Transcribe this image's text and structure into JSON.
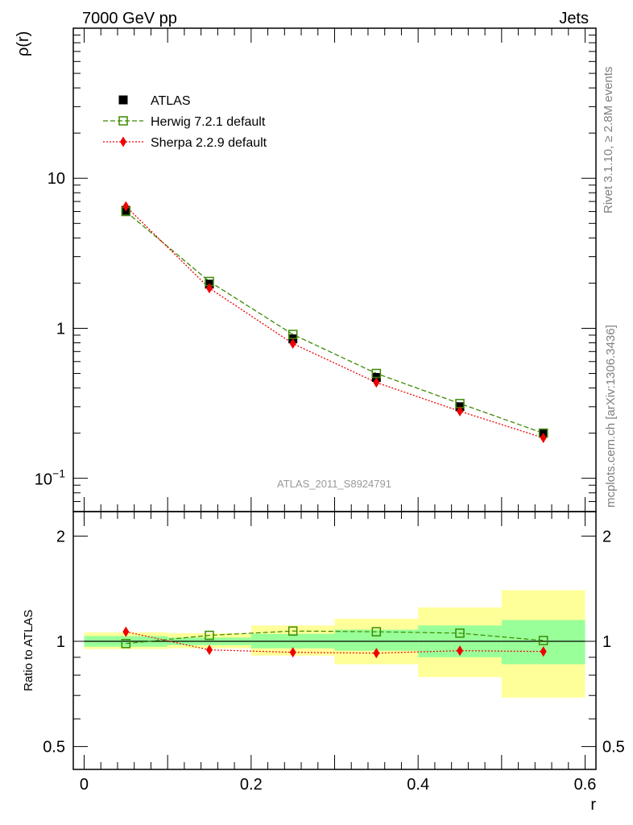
{
  "header": {
    "left": "7000 GeV pp",
    "right": "Jets"
  },
  "side_labels": {
    "rivet": "Rivet 3.1.10, ≥ 2.8M events",
    "mcplots": "mcplots.cern.ch [arXiv:1306.3436]"
  },
  "chart_data": [
    {
      "type": "line",
      "panel": "main",
      "ylabel": "ρ(r)",
      "xlabel": "",
      "yscale": "log",
      "ylim": [
        0.06,
        100
      ],
      "xlim": [
        -0.013,
        0.613
      ],
      "ytick_labels": [
        "10⁻¹",
        "1",
        "10"
      ],
      "watermark": "ATLAS_2011_S8924791",
      "legend_position": "top-left",
      "x": [
        0.05,
        0.15,
        0.25,
        0.35,
        0.45,
        0.55
      ],
      "bins": [
        [
          0.0,
          0.1
        ],
        [
          0.1,
          0.2
        ],
        [
          0.2,
          0.3
        ],
        [
          0.3,
          0.4
        ],
        [
          0.4,
          0.5
        ],
        [
          0.5,
          0.6
        ]
      ],
      "series": [
        {
          "name": "ATLAS",
          "marker": "filled-square",
          "color": "#000000",
          "values": [
            6.1,
            1.97,
            0.85,
            0.47,
            0.3,
            0.2
          ]
        },
        {
          "name": "Herwig 7.2.1 default",
          "marker": "open-square",
          "line": "dashed",
          "color": "#3a8a00",
          "values": [
            6.0,
            2.05,
            0.91,
            0.5,
            0.315,
            0.2
          ]
        },
        {
          "name": "Sherpa 2.2.9 default",
          "marker": "diamond",
          "line": "dotted",
          "color": "#ee0000",
          "values": [
            6.5,
            1.85,
            0.79,
            0.435,
            0.28,
            0.186
          ]
        }
      ]
    },
    {
      "type": "line",
      "panel": "ratio",
      "ylabel": "Ratio to ATLAS",
      "xlabel": "r",
      "yscale": "log",
      "ylim": [
        0.43,
        2.35
      ],
      "ytick_labels": [
        "0.5",
        "1",
        "2"
      ],
      "xtick_labels": [
        "0",
        "0.2",
        "0.4",
        "0.6"
      ],
      "x": [
        0.05,
        0.15,
        0.25,
        0.35,
        0.45,
        0.55
      ],
      "bins": [
        [
          0.0,
          0.1
        ],
        [
          0.1,
          0.2
        ],
        [
          0.2,
          0.3
        ],
        [
          0.3,
          0.4
        ],
        [
          0.4,
          0.5
        ],
        [
          0.5,
          0.6
        ]
      ],
      "uncertainty_bands": {
        "inner_color": "#99ff99",
        "outer_color": "#ffff99",
        "inner": [
          [
            0.965,
            1.035
          ],
          [
            0.975,
            1.025
          ],
          [
            0.955,
            1.05
          ],
          [
            0.94,
            1.08
          ],
          [
            0.9,
            1.11
          ],
          [
            0.86,
            1.15
          ]
        ],
        "outer": [
          [
            0.95,
            1.06
          ],
          [
            0.955,
            1.055
          ],
          [
            0.91,
            1.11
          ],
          [
            0.86,
            1.16
          ],
          [
            0.79,
            1.25
          ],
          [
            0.69,
            1.4
          ]
        ]
      },
      "reference_line": 1,
      "series": [
        {
          "name": "Herwig 7.2.1 default",
          "marker": "open-square",
          "line": "dashed",
          "color": "#3a8a00",
          "values": [
            0.985,
            1.04,
            1.07,
            1.065,
            1.055,
            1.005
          ]
        },
        {
          "name": "Sherpa 2.2.9 default",
          "marker": "diamond",
          "line": "dotted",
          "color": "#ee0000",
          "values": [
            1.065,
            0.945,
            0.93,
            0.925,
            0.94,
            0.935
          ]
        }
      ]
    }
  ]
}
